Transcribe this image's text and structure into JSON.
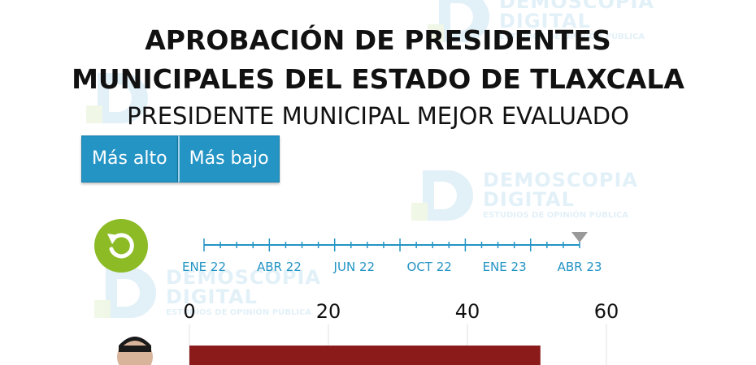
{
  "title_line1": "APROBACIÓN DE PRESIDENTES",
  "title_line2": "MUNICIPALES DEL ESTADO DE TLAXCALA",
  "subtitle": "PRESIDENTE MUNICIPAL MEJOR EVALUADO",
  "buttons": {
    "high": "Más alto",
    "low": "Más bajo"
  },
  "watermark": {
    "line1": "DEMOSCOPIA",
    "line2": "DIGITAL",
    "line3": "ESTUDIOS DE OPINIÓN PÚBLICA"
  },
  "colors": {
    "accent": "#2394c4",
    "replay": "#8cbb26",
    "bar": "#8b1a1a"
  },
  "timeline": {
    "labels": [
      "ENE 22",
      "ABR 22",
      "JUN 22",
      "OCT 22",
      "ENE 23",
      "ABR 23"
    ],
    "current": "ABR 23"
  },
  "chart_data": {
    "type": "bar",
    "orientation": "horizontal",
    "title": "APROBACIÓN DE PRESIDENTES MUNICIPALES DEL ESTADO DE TLAXCALA",
    "subtitle": "PRESIDENTE MUNICIPAL MEJOR EVALUADO",
    "xlim": [
      0,
      60
    ],
    "xticks": [
      0,
      20,
      40,
      60
    ],
    "categories": [
      ""
    ],
    "values": [
      50.5
    ]
  }
}
